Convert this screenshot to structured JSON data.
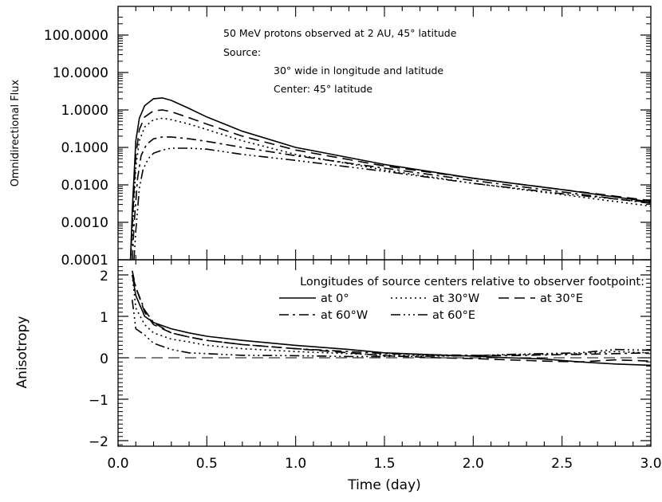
{
  "chart_data": [
    {
      "type": "line",
      "panel": "flux",
      "ylabel": "Omnidirectional Flux",
      "yscale": "log",
      "ylim": [
        0.0001,
        300
      ],
      "xlim": [
        0,
        3.0
      ],
      "y_tick_labels": [
        "100.0000",
        "10.0000",
        "1.0000",
        "0.1000",
        "0.0100",
        "0.0010",
        "0.0001"
      ],
      "annotations": [
        "50 MeV protons observed at 2 AU, 45° latitude",
        "Source:",
        "30° wide in longitude and latitude",
        "Center: 45° latitude"
      ],
      "series": [
        {
          "name": "at 0°",
          "dash": "solid",
          "x": [
            0.07,
            0.08,
            0.1,
            0.12,
            0.15,
            0.2,
            0.25,
            0.3,
            0.4,
            0.5,
            0.7,
            1.0,
            1.5,
            2.0,
            2.5,
            3.0
          ],
          "y": [
            0.0001,
            0.002,
            0.15,
            0.6,
            1.3,
            2.0,
            2.1,
            1.8,
            1.1,
            0.65,
            0.27,
            0.1,
            0.035,
            0.015,
            0.0075,
            0.0035
          ]
        },
        {
          "name": "at 30°E",
          "dash": "longdash",
          "x": [
            0.07,
            0.08,
            0.1,
            0.12,
            0.15,
            0.2,
            0.25,
            0.3,
            0.4,
            0.5,
            0.7,
            1.0,
            1.5,
            2.0,
            2.5,
            3.0
          ],
          "y": [
            0.0001,
            0.0008,
            0.06,
            0.3,
            0.65,
            0.95,
            1.0,
            0.9,
            0.62,
            0.42,
            0.2,
            0.085,
            0.032,
            0.015,
            0.0075,
            0.0038
          ]
        },
        {
          "name": "at 30°W",
          "dash": "dot",
          "x": [
            0.07,
            0.08,
            0.1,
            0.12,
            0.15,
            0.2,
            0.25,
            0.3,
            0.4,
            0.5,
            0.7,
            1.0,
            1.5,
            2.0,
            2.5,
            3.0
          ],
          "y": [
            0.0001,
            0.0004,
            0.03,
            0.15,
            0.35,
            0.55,
            0.6,
            0.55,
            0.42,
            0.3,
            0.15,
            0.065,
            0.025,
            0.011,
            0.0055,
            0.0027
          ]
        },
        {
          "name": "at 60°W",
          "dash": "dashdot",
          "x": [
            0.08,
            0.09,
            0.11,
            0.13,
            0.16,
            0.2,
            0.25,
            0.3,
            0.4,
            0.5,
            0.7,
            1.0,
            1.5,
            2.0,
            2.5,
            3.0
          ],
          "y": [
            0.0001,
            0.0008,
            0.015,
            0.06,
            0.12,
            0.17,
            0.19,
            0.19,
            0.17,
            0.145,
            0.1,
            0.06,
            0.028,
            0.013,
            0.0065,
            0.0032
          ]
        },
        {
          "name": "at 60°E",
          "dash": "dashdotdotdot",
          "x": [
            0.09,
            0.1,
            0.12,
            0.14,
            0.17,
            0.2,
            0.25,
            0.3,
            0.4,
            0.5,
            0.7,
            1.0,
            1.5,
            2.0,
            2.5,
            3.0
          ],
          "y": [
            0.0001,
            0.0006,
            0.008,
            0.025,
            0.05,
            0.07,
            0.085,
            0.095,
            0.095,
            0.09,
            0.065,
            0.045,
            0.023,
            0.011,
            0.0058,
            0.0034
          ]
        }
      ]
    },
    {
      "type": "line",
      "panel": "anisotropy",
      "ylabel": "Anisotropy",
      "xlabel": "Time (day)",
      "ylim": [
        -2.2,
        2.2
      ],
      "xlim": [
        0,
        3.0
      ],
      "y_tick_labels": [
        "2",
        "1",
        "0",
        "−1",
        "−2"
      ],
      "x_tick_labels": [
        "0.0",
        "0.5",
        "1.0",
        "1.5",
        "2.0",
        "2.5",
        "3.0"
      ],
      "legend_title": "Longitudes of source centers relative to observer footpoint:",
      "reference_line": {
        "y": 0,
        "dash": "longdash"
      },
      "series": [
        {
          "name": "at 0°",
          "dash": "solid",
          "x": [
            0.08,
            0.1,
            0.15,
            0.2,
            0.3,
            0.4,
            0.5,
            0.7,
            1.0,
            1.3,
            1.5,
            1.8,
            2.0,
            2.2,
            2.4,
            2.6,
            2.8,
            3.0
          ],
          "y": [
            2.0,
            1.5,
            1.0,
            0.85,
            0.7,
            0.6,
            0.52,
            0.42,
            0.3,
            0.2,
            0.12,
            0.07,
            0.04,
            0.0,
            -0.03,
            -0.1,
            -0.15,
            -0.18
          ]
        },
        {
          "name": "at 30°W",
          "dash": "dot",
          "x": [
            0.08,
            0.1,
            0.15,
            0.2,
            0.3,
            0.4,
            0.5,
            0.7,
            1.0,
            1.3,
            1.5,
            1.8,
            2.0,
            2.2,
            2.4,
            2.6,
            2.8,
            3.0
          ],
          "y": [
            2.0,
            1.2,
            0.8,
            0.6,
            0.45,
            0.38,
            0.3,
            0.22,
            0.15,
            0.1,
            0.07,
            0.05,
            0.05,
            0.07,
            0.08,
            0.1,
            0.15,
            0.12
          ]
        },
        {
          "name": "at 30°E",
          "dash": "longdash",
          "x": [
            0.08,
            0.1,
            0.15,
            0.2,
            0.3,
            0.4,
            0.5,
            0.7,
            1.0,
            1.3,
            1.5,
            1.8,
            2.0,
            2.2,
            2.4,
            2.6,
            2.8,
            3.0
          ],
          "y": [
            2.0,
            1.7,
            1.1,
            0.8,
            0.6,
            0.5,
            0.42,
            0.32,
            0.22,
            0.12,
            0.05,
            0.0,
            -0.02,
            -0.05,
            -0.08,
            -0.1,
            -0.05,
            -0.08
          ]
        },
        {
          "name": "at 60°W",
          "dash": "dashdot",
          "x": [
            0.08,
            0.1,
            0.15,
            0.2,
            0.3,
            0.4,
            0.5,
            0.7,
            1.0,
            1.3,
            1.5,
            1.8,
            2.0,
            2.2,
            2.4,
            2.6,
            2.8,
            3.0
          ],
          "y": [
            2.1,
            1.7,
            1.15,
            0.85,
            0.6,
            0.5,
            0.42,
            0.32,
            0.22,
            0.15,
            0.1,
            0.07,
            0.06,
            0.05,
            0.07,
            0.08,
            0.1,
            0.12
          ]
        },
        {
          "name": "at 60°E",
          "dash": "dashdotdotdot",
          "x": [
            0.08,
            0.1,
            0.15,
            0.2,
            0.3,
            0.4,
            0.5,
            0.7,
            1.0,
            1.3,
            1.5,
            1.8,
            2.0,
            2.2,
            2.4,
            2.6,
            2.8,
            3.0
          ],
          "y": [
            1.4,
            0.7,
            0.55,
            0.35,
            0.2,
            0.12,
            0.1,
            0.06,
            0.05,
            0.03,
            0.03,
            0.04,
            0.05,
            0.08,
            0.1,
            0.12,
            0.2,
            0.18
          ]
        }
      ]
    }
  ]
}
